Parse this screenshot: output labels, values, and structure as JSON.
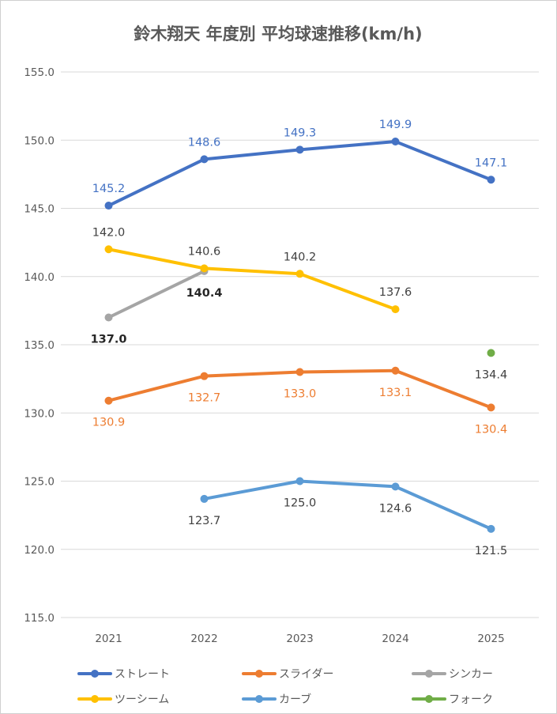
{
  "chart_data": {
    "type": "line",
    "title": "鈴木翔天 年度別 平均球速推移(km/h)",
    "xlabel": "",
    "ylabel": "",
    "categories": [
      "2021",
      "2022",
      "2023",
      "2024",
      "2025"
    ],
    "ylim": [
      115.0,
      155.0
    ],
    "yticks": [
      "115.0",
      "120.0",
      "125.0",
      "130.0",
      "135.0",
      "140.0",
      "145.0",
      "150.0",
      "155.0"
    ],
    "grid": true,
    "legend": "bottom",
    "series": [
      {
        "name": "ストレート",
        "color": "#4472C4",
        "values": [
          145.2,
          148.6,
          149.3,
          149.9,
          147.1
        ],
        "labels": [
          "145.2",
          "148.6",
          "149.3",
          "149.9",
          "147.1"
        ],
        "label_pos": "above",
        "label_color": "#4472C4",
        "label_bold": false
      },
      {
        "name": "スライダー",
        "color": "#ED7D31",
        "values": [
          130.9,
          132.7,
          133.0,
          133.1,
          130.4
        ],
        "labels": [
          "130.9",
          "132.7",
          "133.0",
          "133.1",
          "130.4"
        ],
        "label_pos": "below",
        "label_color": "#ED7D31",
        "label_bold": false
      },
      {
        "name": "シンカー",
        "color": "#A5A5A5",
        "values": [
          137.0,
          140.4,
          null,
          null,
          null
        ],
        "labels": [
          "137.0",
          "140.4",
          null,
          null,
          null
        ],
        "label_pos": "below",
        "label_color": "#262626",
        "label_bold": true
      },
      {
        "name": "ツーシーム",
        "color": "#FFC000",
        "values": [
          142.0,
          140.6,
          140.2,
          137.6,
          null
        ],
        "labels": [
          "142.0",
          "140.6",
          "140.2",
          "137.6",
          null
        ],
        "label_pos": "above",
        "label_color": "#404040",
        "label_bold": false
      },
      {
        "name": "カーブ",
        "color": "#5B9BD5",
        "values": [
          null,
          123.7,
          125.0,
          124.6,
          121.5
        ],
        "labels": [
          null,
          "123.7",
          "125.0",
          "124.6",
          "121.5"
        ],
        "label_pos": "below",
        "label_color": "#404040",
        "label_bold": false
      },
      {
        "name": "フォーク",
        "color": "#70AD47",
        "values": [
          null,
          null,
          null,
          null,
          134.4
        ],
        "labels": [
          null,
          null,
          null,
          null,
          "134.4"
        ],
        "label_pos": "below",
        "label_color": "#404040",
        "label_bold": false
      }
    ]
  }
}
